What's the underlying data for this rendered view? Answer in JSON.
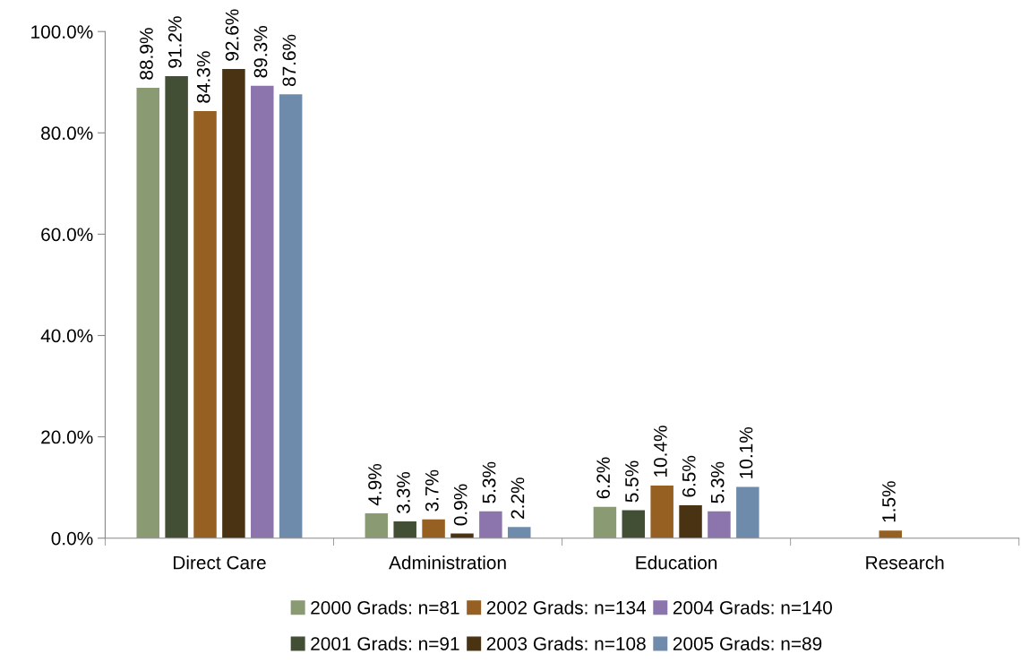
{
  "chart_data": {
    "type": "bar",
    "categories": [
      "Direct Care",
      "Administration",
      "Education",
      "Research"
    ],
    "series": [
      {
        "name": "2000 Grads: n=81",
        "color": "#8a9a72",
        "values": [
          88.9,
          4.9,
          6.2,
          null
        ],
        "value_labels": [
          "88.9%",
          "4.9%",
          "6.2%",
          null
        ]
      },
      {
        "name": "2001 Grads: n=91",
        "color": "#424f35",
        "values": [
          91.2,
          3.3,
          5.5,
          null
        ],
        "value_labels": [
          "91.2%",
          "3.3%",
          "5.5%",
          null
        ]
      },
      {
        "name": "2002 Grads: n=134",
        "color": "#976023",
        "values": [
          84.3,
          3.7,
          10.4,
          1.5
        ],
        "value_labels": [
          "84.3%",
          "3.7%",
          "10.4%",
          "1.5%"
        ]
      },
      {
        "name": "2003 Grads: n=108",
        "color": "#4a3312",
        "values": [
          92.6,
          0.9,
          6.5,
          null
        ],
        "value_labels": [
          "92.6%",
          "0.9%",
          "6.5%",
          null
        ]
      },
      {
        "name": "2004 Grads: n=140",
        "color": "#8c74ad",
        "values": [
          89.3,
          5.3,
          5.3,
          null
        ],
        "value_labels": [
          "89.3%",
          "5.3%",
          "5.3%",
          null
        ]
      },
      {
        "name": "2005 Grads: n=89",
        "color": "#6f8bac",
        "values": [
          87.6,
          2.2,
          10.1,
          null
        ],
        "value_labels": [
          "87.6%",
          "2.2%",
          "10.1%",
          null
        ]
      }
    ],
    "ylim": [
      0,
      100
    ],
    "yticks": [
      {
        "value": 0,
        "label": "0.0%"
      },
      {
        "value": 20,
        "label": "20.0%"
      },
      {
        "value": 40,
        "label": "40.0%"
      },
      {
        "value": 60,
        "label": "60.0%"
      },
      {
        "value": 80,
        "label": "80.0%"
      },
      {
        "value": 100,
        "label": "100.0%"
      }
    ],
    "grid": false,
    "legend": "bottom"
  }
}
